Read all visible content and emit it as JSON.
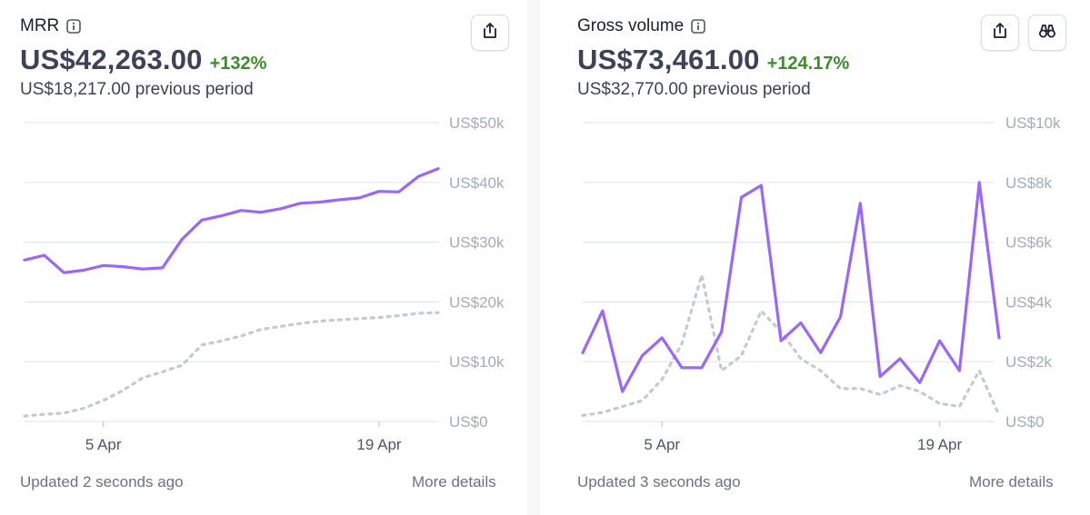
{
  "mrr": {
    "title": "MRR",
    "value": "US$42,263.00",
    "delta": "+132%",
    "previous": "US$18,217.00 previous period",
    "footer_updated": "Updated 2 seconds ago",
    "footer_link": "More details",
    "chart_data": {
      "type": "line",
      "x": [
        "1 Apr",
        "2 Apr",
        "3 Apr",
        "4 Apr",
        "5 Apr",
        "6 Apr",
        "7 Apr",
        "8 Apr",
        "9 Apr",
        "10 Apr",
        "11 Apr",
        "12 Apr",
        "13 Apr",
        "14 Apr",
        "15 Apr",
        "16 Apr",
        "17 Apr",
        "18 Apr",
        "19 Apr",
        "20 Apr",
        "21 Apr",
        "22 Apr"
      ],
      "x_ticks": [
        "5 Apr",
        "19 Apr"
      ],
      "y_ticks": [
        "US$0",
        "US$10k",
        "US$20k",
        "US$30k",
        "US$40k",
        "US$50k"
      ],
      "ylim": [
        0,
        50000
      ],
      "series": [
        {
          "role": "current",
          "color": "#9966ff",
          "style": "solid",
          "values": [
            27000,
            27800,
            24900,
            25300,
            26100,
            25900,
            25500,
            25700,
            30500,
            33700,
            34400,
            35300,
            35000,
            35600,
            36500,
            36700,
            37100,
            37400,
            38500,
            38400,
            41000,
            42300
          ]
        },
        {
          "role": "previous",
          "color": "#c4c9d2",
          "style": "dashed",
          "values": [
            900,
            1200,
            1400,
            2200,
            3500,
            5200,
            7300,
            8300,
            9400,
            12800,
            13500,
            14300,
            15400,
            15900,
            16400,
            16800,
            17000,
            17200,
            17400,
            17700,
            18100,
            18200
          ]
        }
      ]
    }
  },
  "gross": {
    "title": "Gross volume",
    "value": "US$73,461.00",
    "delta": "+124.17%",
    "previous": "US$32,770.00 previous period",
    "footer_updated": "Updated 3 seconds ago",
    "footer_link": "More details",
    "chart_data": {
      "type": "line",
      "x": [
        "1 Apr",
        "2 Apr",
        "3 Apr",
        "4 Apr",
        "5 Apr",
        "6 Apr",
        "7 Apr",
        "8 Apr",
        "9 Apr",
        "10 Apr",
        "11 Apr",
        "12 Apr",
        "13 Apr",
        "14 Apr",
        "15 Apr",
        "16 Apr",
        "17 Apr",
        "18 Apr",
        "19 Apr",
        "20 Apr",
        "21 Apr",
        "22 Apr"
      ],
      "x_ticks": [
        "5 Apr",
        "19 Apr"
      ],
      "y_ticks": [
        "US$0",
        "US$2k",
        "US$4k",
        "US$6k",
        "US$8k",
        "US$10k"
      ],
      "ylim": [
        0,
        10000
      ],
      "series": [
        {
          "role": "current",
          "color": "#9966ff",
          "style": "solid",
          "values": [
            2300,
            3700,
            1000,
            2200,
            2800,
            1800,
            1800,
            3000,
            7500,
            7900,
            2700,
            3300,
            2300,
            3500,
            7300,
            1500,
            2100,
            1300,
            2700,
            1700,
            8000,
            2800
          ]
        },
        {
          "role": "previous",
          "color": "#c4c9d2",
          "style": "dashed",
          "values": [
            200,
            300,
            500,
            700,
            1400,
            2600,
            4900,
            1700,
            2200,
            3700,
            3000,
            2100,
            1700,
            1100,
            1100,
            900,
            1200,
            1000,
            600,
            500,
            1700,
            200
          ]
        }
      ]
    }
  },
  "icons": {
    "info": "info-icon",
    "share": "share-icon",
    "explore": "binoculars-icon"
  },
  "colors": {
    "line_current": "#9966ff",
    "line_previous": "#c4c9d2",
    "delta": "#3d8c2c",
    "axis_text": "#a3acb9"
  }
}
